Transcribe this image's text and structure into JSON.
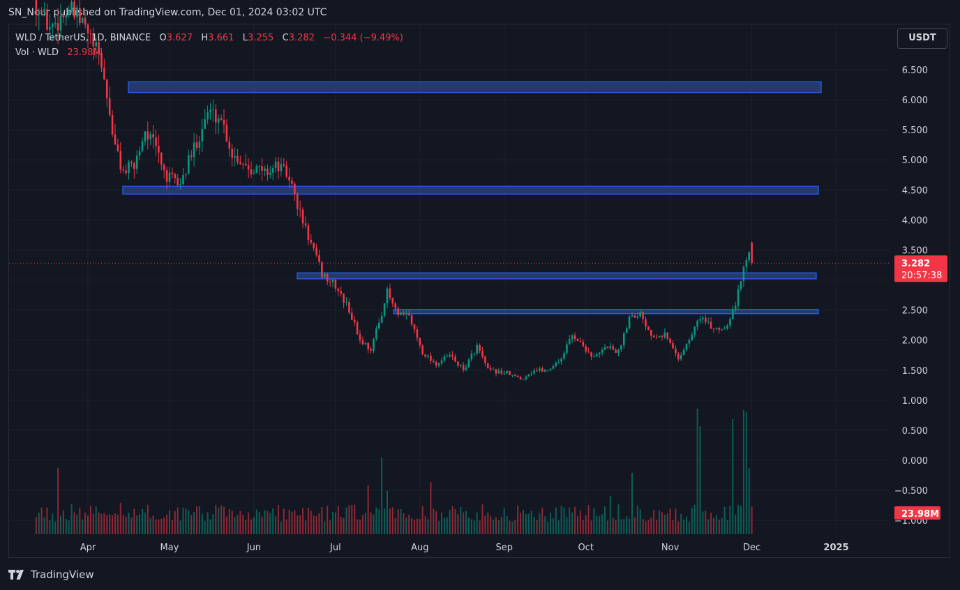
{
  "header": {
    "published": "SN_Nour published on TradingView.com, Dec 01, 2024 03:02 UTC"
  },
  "legend": {
    "symbol": "WLD / TetherUS, 1D, BINANCE",
    "o_label": "O",
    "o_value": "3.627",
    "h_label": "H",
    "h_value": "3.661",
    "l_label": "L",
    "l_value": "3.255",
    "c_label": "C",
    "c_value": "3.282",
    "change": "−0.344 (−9.49%)",
    "vol_label": "Vol · WLD",
    "vol_value": "23.98M"
  },
  "toolbar": {
    "currency": "USDT"
  },
  "footer": {
    "brand": "TradingView"
  },
  "colors": {
    "background": "#131722",
    "grid": "#1e222d",
    "up": "#089981",
    "down": "#f23645",
    "zone_fill": "#2a3f7a",
    "zone_border": "#2962ff",
    "text": "#d1d4dc"
  },
  "chart_data": {
    "type": "candlestick",
    "price_axis": {
      "ticks": [
        "6.500",
        "6.000",
        "5.500",
        "5.000",
        "4.500",
        "4.000",
        "3.500",
        "2.500",
        "2.000",
        "1.500",
        "1.000",
        "0.500",
        "0.000",
        "−0.500",
        "−1.000"
      ],
      "ylim": [
        -1.1,
        6.9
      ]
    },
    "time_axis": {
      "ticks": [
        "Apr",
        "May",
        "Jun",
        "Jul",
        "Aug",
        "Sep",
        "Oct",
        "Nov",
        "Dec",
        "2025"
      ]
    },
    "last_price": {
      "value": 3.282,
      "label": "3.282",
      "countdown": "20:57:38"
    },
    "volume_label": "23.98M",
    "zones": [
      {
        "from": 6.12,
        "to": 6.3
      },
      {
        "from": 4.43,
        "to": 4.56
      },
      {
        "from": 3.02,
        "to": 3.12
      },
      {
        "from": 2.44,
        "to": 2.51
      }
    ],
    "series": [
      {
        "name": "WLD / TetherUS",
        "anchors": [
          [
            "2024-03-13",
            7.6
          ],
          [
            "2024-03-18",
            7.2
          ],
          [
            "2024-03-25",
            7.5
          ],
          [
            "2024-03-31",
            7.2
          ],
          [
            "2024-04-06",
            6.6
          ],
          [
            "2024-04-11",
            5.2
          ],
          [
            "2024-04-14",
            4.8
          ],
          [
            "2024-04-18",
            4.9
          ],
          [
            "2024-04-22",
            5.5
          ],
          [
            "2024-04-26",
            5.2
          ],
          [
            "2024-04-30",
            4.7
          ],
          [
            "2024-05-05",
            4.6
          ],
          [
            "2024-05-10",
            5.2
          ],
          [
            "2024-05-15",
            5.8
          ],
          [
            "2024-05-20",
            5.7
          ],
          [
            "2024-05-24",
            5.1
          ],
          [
            "2024-05-30",
            4.9
          ],
          [
            "2024-06-05",
            4.8
          ],
          [
            "2024-06-10",
            4.9
          ],
          [
            "2024-06-14",
            4.7
          ],
          [
            "2024-06-18",
            4.1
          ],
          [
            "2024-06-22",
            3.6
          ],
          [
            "2024-06-26",
            3.1
          ],
          [
            "2024-07-01",
            2.9
          ],
          [
            "2024-07-06",
            2.5
          ],
          [
            "2024-07-10",
            2.0
          ],
          [
            "2024-07-14",
            1.85
          ],
          [
            "2024-07-17",
            2.3
          ],
          [
            "2024-07-20",
            2.8
          ],
          [
            "2024-07-24",
            2.4
          ],
          [
            "2024-07-28",
            2.4
          ],
          [
            "2024-08-02",
            1.8
          ],
          [
            "2024-08-07",
            1.6
          ],
          [
            "2024-08-12",
            1.75
          ],
          [
            "2024-08-17",
            1.5
          ],
          [
            "2024-08-22",
            1.9
          ],
          [
            "2024-08-26",
            1.5
          ],
          [
            "2024-09-02",
            1.45
          ],
          [
            "2024-09-07",
            1.35
          ],
          [
            "2024-09-12",
            1.5
          ],
          [
            "2024-09-17",
            1.5
          ],
          [
            "2024-09-22",
            1.7
          ],
          [
            "2024-09-26",
            2.1
          ],
          [
            "2024-09-30",
            1.9
          ],
          [
            "2024-10-04",
            1.7
          ],
          [
            "2024-10-09",
            1.9
          ],
          [
            "2024-10-13",
            1.8
          ],
          [
            "2024-10-17",
            2.4
          ],
          [
            "2024-10-21",
            2.45
          ],
          [
            "2024-10-25",
            2.1
          ],
          [
            "2024-10-30",
            2.1
          ],
          [
            "2024-11-04",
            1.7
          ],
          [
            "2024-11-08",
            2.0
          ],
          [
            "2024-11-12",
            2.4
          ],
          [
            "2024-11-16",
            2.2
          ],
          [
            "2024-11-21",
            2.2
          ],
          [
            "2024-11-25",
            2.6
          ],
          [
            "2024-11-28",
            3.2
          ],
          [
            "2024-11-30",
            3.55
          ],
          [
            "2024-12-01",
            3.282
          ]
        ]
      },
      {
        "name": "Vol · WLD",
        "peaks": [
          [
            "2024-03-21",
            95
          ],
          [
            "2024-04-13",
            45
          ],
          [
            "2024-05-11",
            40
          ],
          [
            "2024-07-18",
            110
          ],
          [
            "2024-07-13",
            70
          ],
          [
            "2024-07-20",
            62
          ],
          [
            "2024-08-05",
            75
          ],
          [
            "2024-10-10",
            55
          ],
          [
            "2024-10-18",
            88
          ],
          [
            "2024-11-11",
            180
          ],
          [
            "2024-11-12",
            155
          ],
          [
            "2024-11-24",
            165
          ],
          [
            "2024-11-28",
            178
          ],
          [
            "2024-11-29",
            175
          ],
          [
            "2024-11-30",
            95
          ]
        ]
      }
    ]
  }
}
